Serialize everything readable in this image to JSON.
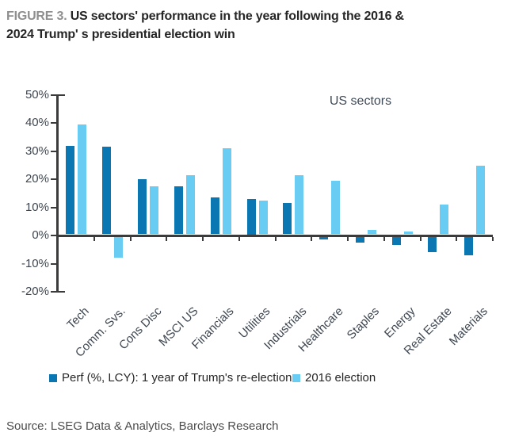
{
  "header": {
    "figure_label": "FIGURE 3.",
    "title_line1": "US sectors' performance in the year following the 2016 &",
    "title_line2": "2024 Trump' s presidential election win"
  },
  "source": "Source: LSEG Data & Analytics, Barclays Research",
  "colors": {
    "axis": "#3b3b3b",
    "dark_blue": "#0a76b2",
    "light_blue": "#69cdf3",
    "tick_text": "#3e4751",
    "title_text": "#262626",
    "figure_label_gray": "#8f8f8f",
    "annotation_text": "#3f4b59",
    "source_text": "#4c4c4c"
  },
  "chart_data": {
    "type": "bar",
    "title": "US sectors' performance in the year following the 2016 & 2024 Trump' s presidential election win",
    "annotation": "US sectors",
    "categories": [
      "Tech",
      "Comm. Svs.",
      "Cons Disc",
      "MSCI US",
      "Financials",
      "Utilities",
      "Industrials",
      "Healthcare",
      "Staples",
      "Energy",
      "Real Estate",
      "Materials"
    ],
    "series": [
      {
        "name": "Perf (%, LCY): 1 year of Trump's re-election",
        "color": "#0a76b2",
        "values": [
          31.5,
          31,
          19.5,
          17,
          13,
          12.5,
          11,
          -1,
          -2,
          -3,
          -5.5,
          -6.5
        ]
      },
      {
        "name": "2016 election",
        "color": "#69cdf3",
        "values": [
          39,
          -7.5,
          17,
          21,
          30.5,
          12,
          21,
          19,
          1.5,
          1,
          10.5,
          24.5
        ]
      }
    ],
    "ylabel": "",
    "xlabel": "",
    "ylim": [
      -20,
      50
    ],
    "yticks": [
      50,
      40,
      30,
      20,
      10,
      0,
      -10,
      -20
    ],
    "ytick_suffix": "%",
    "grid": false,
    "legend_position": "bottom"
  }
}
